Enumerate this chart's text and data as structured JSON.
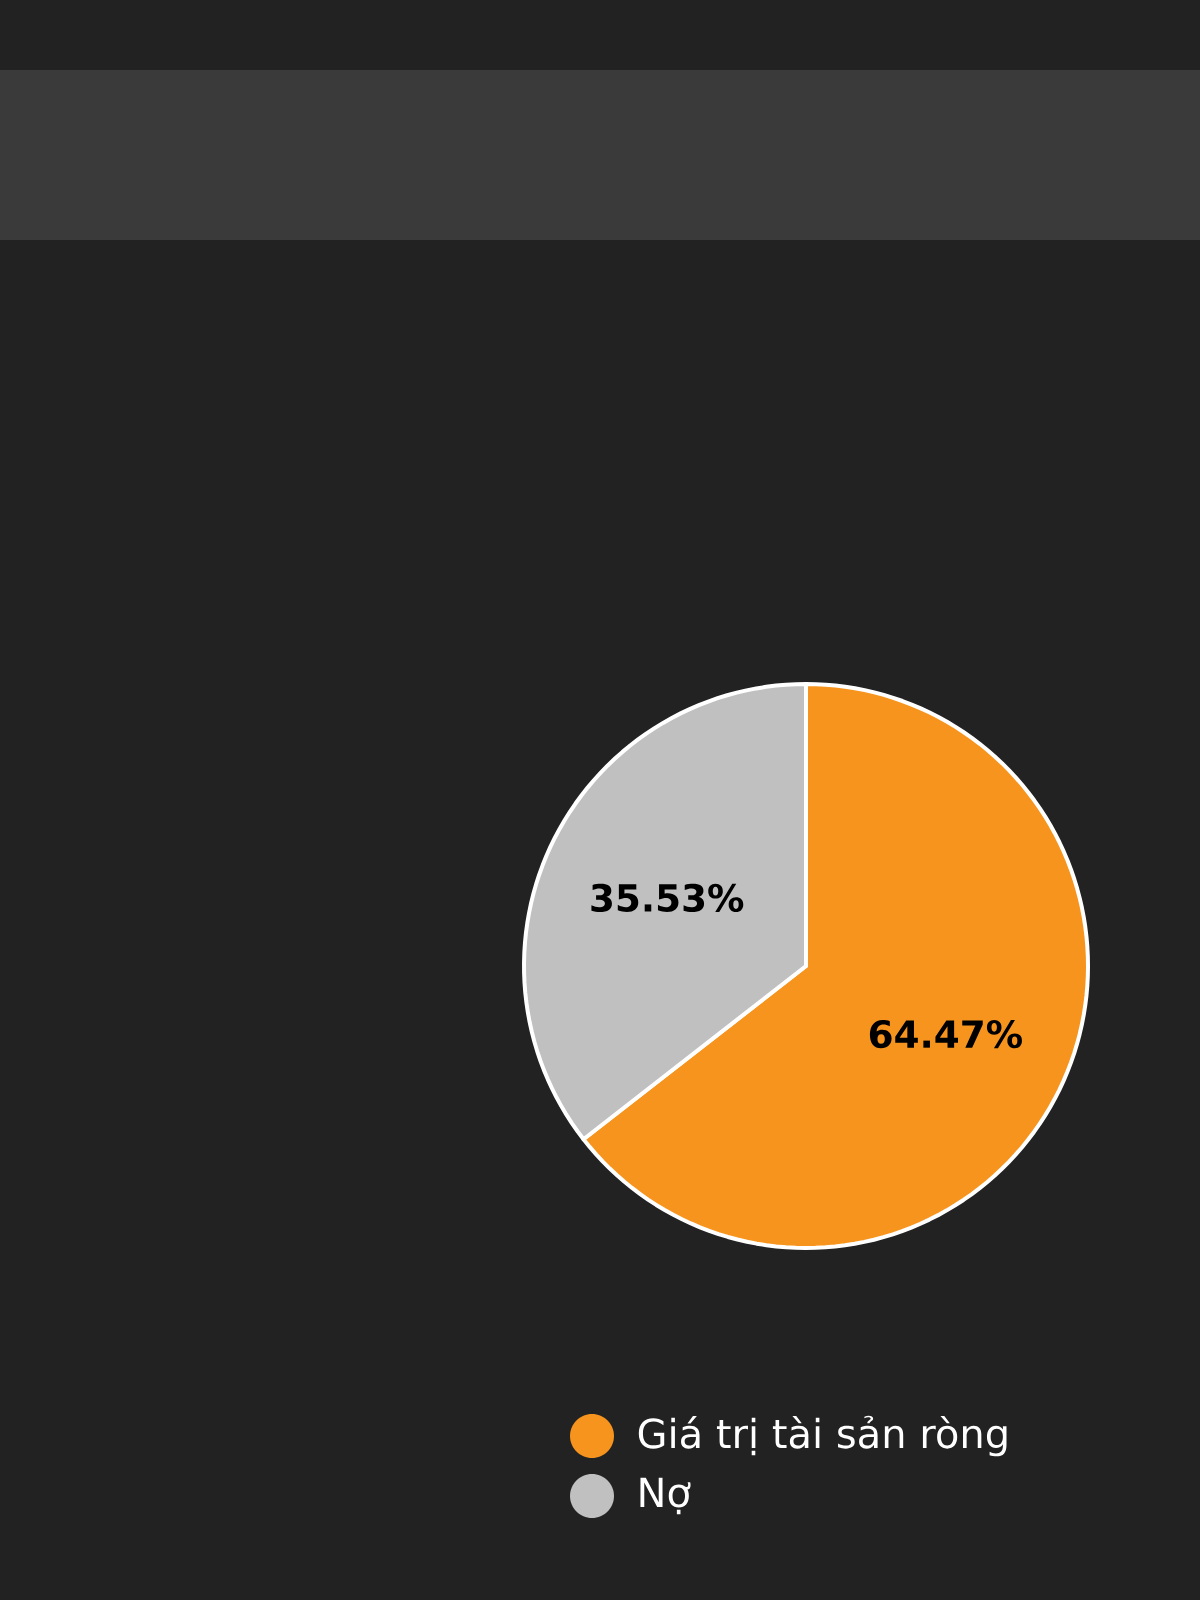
{
  "chart_data": {
    "type": "pie",
    "categories": [
      "Giá trị tài sản ròng",
      "Nợ"
    ],
    "values": [
      64.47,
      35.53
    ],
    "value_labels": [
      "64.47%",
      "35.53%"
    ],
    "colors": [
      "#f7941d",
      "#c0c0c0"
    ],
    "legend": "bottom"
  }
}
